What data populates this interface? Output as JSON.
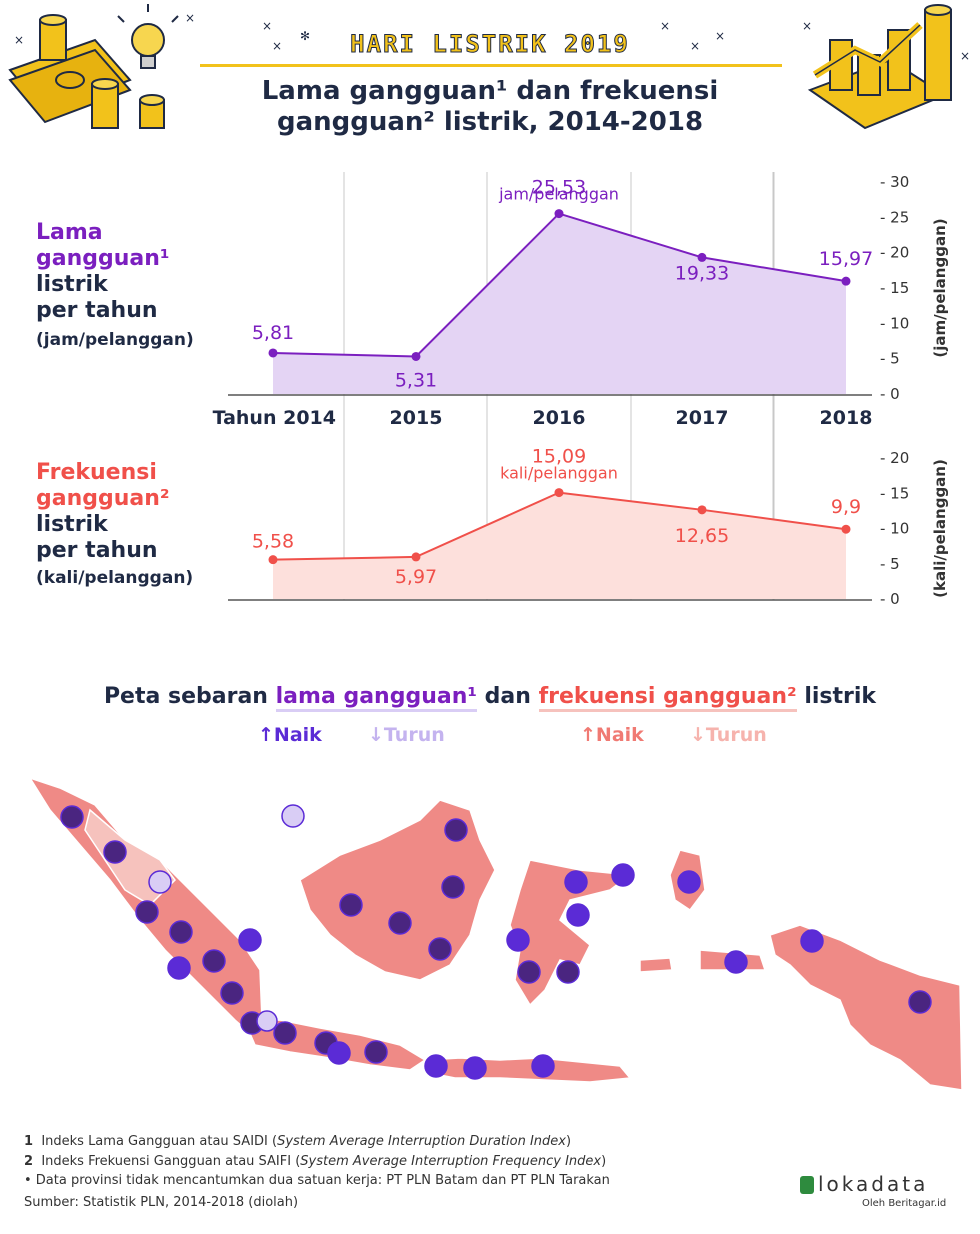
{
  "header": {
    "banner": "HARI LISTRIK 2019",
    "title_line1": "Lama gangguan¹ dan frekuensi",
    "title_line2": "gangguan² listrik, 2014-2018"
  },
  "left_labels": {
    "duration": [
      "Lama",
      "gangguan¹",
      "listrik",
      "per tahun"
    ],
    "duration_unit": "(jam/pelanggan)",
    "frequency": [
      "Frekuensi",
      "gangguan²",
      "listrik",
      "per tahun"
    ],
    "frequency_unit": "(kali/pelanggan)"
  },
  "colors": {
    "purple": "#7b1fbf",
    "purple_fill": "#e4d4f4",
    "red": "#f0504a",
    "red_fill": "#fde0dc",
    "navy": "#1f2a44",
    "yellow": "#f2c21b",
    "map_red": "#ef8a86",
    "map_pink": "#f6c2bd",
    "dot_up": "#5b2bd6",
    "dot_down": "#d9cdf5"
  },
  "chart_data": [
    {
      "type": "area",
      "x": [
        "Tahun 2014",
        "2015",
        "2016",
        "2017",
        "2018"
      ],
      "values": [
        5.81,
        5.31,
        25.53,
        19.33,
        15.97
      ],
      "value_labels": [
        "5,81",
        "5,31",
        "25,53",
        "19,33",
        "15,97"
      ],
      "peak_unit": "jam/pelanggan",
      "ylabel": "(jam/pelanggan)",
      "ylim": [
        0,
        30
      ],
      "yticks": [
        "- 30",
        "- 25",
        "- 20",
        "- 15",
        "- 10",
        "- 5",
        "- 0"
      ],
      "grid": "vertical"
    },
    {
      "type": "area",
      "x": [
        "Tahun 2014",
        "2015",
        "2016",
        "2017",
        "2018"
      ],
      "values": [
        5.58,
        5.97,
        15.09,
        12.65,
        9.9
      ],
      "value_labels": [
        "5,58",
        "5,97",
        "15,09",
        "12,65",
        "9,9"
      ],
      "peak_unit": "kali/pelanggan",
      "ylabel": "(kali/pelanggan)",
      "ylim": [
        0,
        20
      ],
      "yticks": [
        "- 20",
        "- 15",
        "- 10",
        "- 5",
        "- 0"
      ],
      "grid": "vertical"
    }
  ],
  "map": {
    "title_prefix": "Peta sebaran ",
    "title_purple": "lama gangguan¹",
    "title_middle": " dan ",
    "title_red": "frekuensi gangguan²",
    "title_suffix": " listrik",
    "legend": {
      "duration_up": "Naik",
      "duration_down": "Turun",
      "freq_up": "Naik",
      "freq_down": "Turun"
    }
  },
  "footnotes": {
    "n1_num": "1",
    "n1_text": "Indeks Lama Gangguan atau SAIDI (",
    "n1_italic": "System Average Interruption Duration Index",
    "n2_num": "2",
    "n2_text": "Indeks Frekuensi Gangguan atau SAIFI (",
    "n2_italic": "System Average Interruption Frequency Index",
    "close": ")",
    "note": "• Data provinsi tidak mencantumkan dua satuan kerja: PT PLN Batam dan PT PLN Tarakan",
    "source": "Sumber: Statistik PLN, 2014-2018 (diolah)"
  },
  "brand": {
    "name": "lokadata",
    "sub": "Oleh Beritagar.id"
  }
}
